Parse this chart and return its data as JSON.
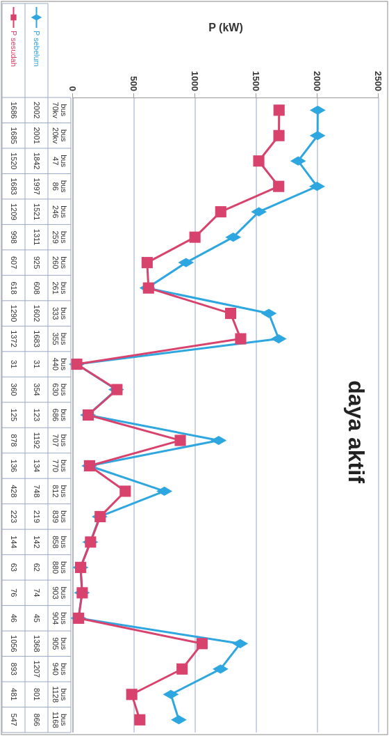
{
  "chart_data": {
    "type": "line",
    "orientation": "horizontal",
    "title": "daya aktif",
    "xlabel": "P (kW)",
    "categories": [
      "bus 70kv",
      "bus 20kv",
      "bus 47",
      "bus 86",
      "bus 246",
      "bus 259",
      "bus 260",
      "bus 261",
      "bus 333",
      "bus 355",
      "bus 440",
      "bus 630",
      "bus 686",
      "bus 707",
      "bus 770",
      "bus 812",
      "bus 839",
      "bus 858",
      "bus 880",
      "bus 903",
      "bus 904",
      "bus 905",
      "bus 940",
      "bus 1128",
      "bus 1168"
    ],
    "series": [
      {
        "name": "P sebelum",
        "color": "#2ea6df",
        "marker": "diamond",
        "values": [
          2002,
          2001,
          1842,
          1997,
          1521,
          1311,
          925,
          608,
          1602,
          1683,
          31,
          354,
          123,
          1192,
          134,
          748,
          219,
          142,
          62,
          74,
          45,
          1368,
          1207,
          801,
          866
        ]
      },
      {
        "name": "P sesudah",
        "color": "#d8436e",
        "marker": "square",
        "values": [
          1686,
          1685,
          1520,
          1683,
          1209,
          998,
          607,
          618,
          1290,
          1372,
          31,
          360,
          125,
          878,
          136,
          428,
          223,
          144,
          63,
          76,
          46,
          1056,
          893,
          481,
          547
        ]
      }
    ],
    "xlim": [
      0,
      2500
    ],
    "xticks": [
      0,
      500,
      1000,
      1500,
      2000,
      2500
    ],
    "grid": "x",
    "legend": "top left",
    "data_labels": true
  }
}
